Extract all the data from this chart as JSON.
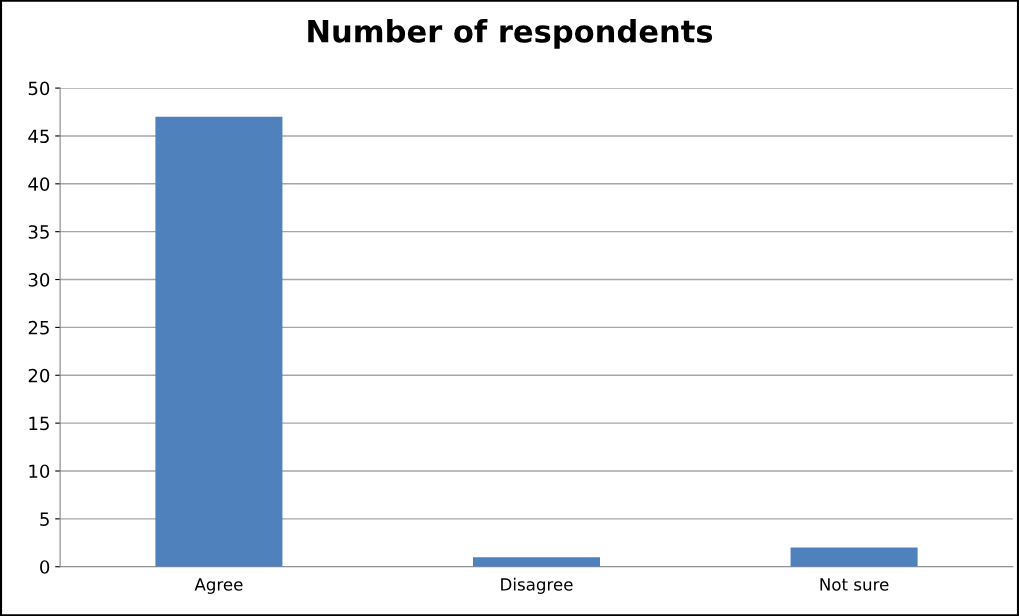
{
  "chart_data": {
    "type": "bar",
    "title": "Number of respondents",
    "categories": [
      "Agree",
      "Disagree",
      "Not sure"
    ],
    "values": [
      47,
      1,
      2
    ],
    "color": "#4f81bd",
    "ylim": [
      0,
      50
    ],
    "yticks": [
      0,
      5,
      10,
      15,
      20,
      25,
      30,
      35,
      40,
      45,
      50
    ],
    "grid": "y"
  }
}
